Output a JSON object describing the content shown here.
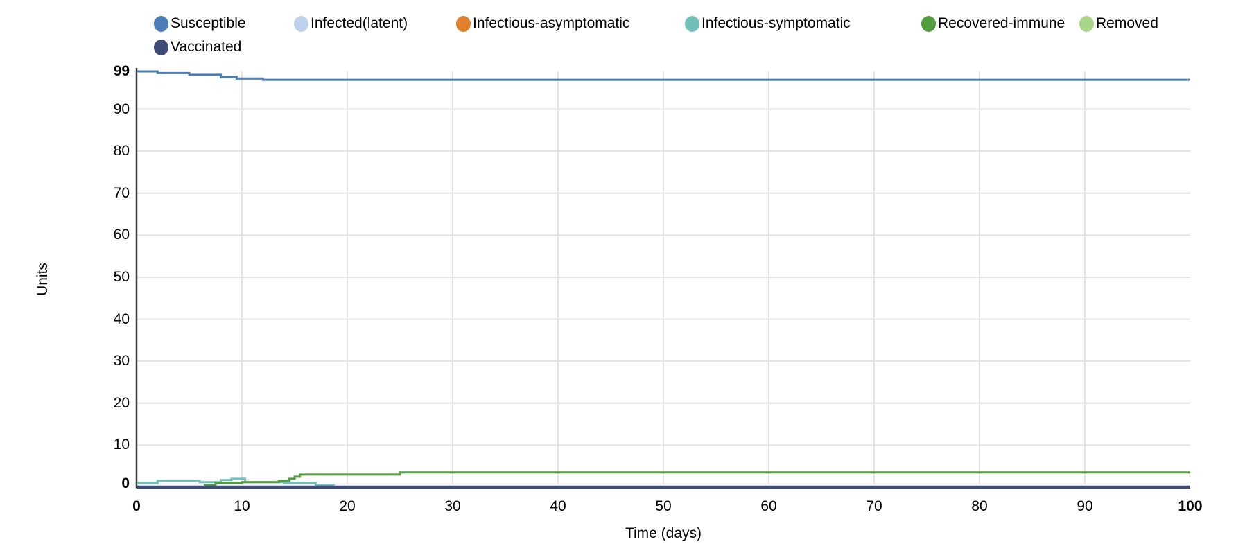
{
  "chart_data": {
    "type": "line",
    "style": "step-after",
    "title": "",
    "xlabel": "Time (days)",
    "ylabel": "Units",
    "xlim": [
      0,
      100
    ],
    "ylim": [
      0,
      99
    ],
    "xticks": [
      0,
      10,
      20,
      30,
      40,
      50,
      60,
      70,
      80,
      90,
      100
    ],
    "yticks": [
      0,
      10,
      20,
      30,
      40,
      50,
      60,
      70,
      80,
      90,
      99
    ],
    "bold_xticks": [
      0,
      100
    ],
    "bold_yticks": [
      0,
      99
    ],
    "grid": true,
    "legend_position": "top",
    "colors": {
      "grid": "#e3e3e3",
      "axis": "#3c3c3c",
      "text": "#000000"
    },
    "series": [
      {
        "name": "Susceptible",
        "color": "#4b7db8",
        "points": [
          [
            0,
            99
          ],
          [
            2,
            98.6
          ],
          [
            5,
            98.2
          ],
          [
            8,
            97.6
          ],
          [
            9.5,
            97.3
          ],
          [
            12,
            97
          ],
          [
            100,
            97
          ]
        ]
      },
      {
        "name": "Infected(latent)",
        "color": "#bed1ed",
        "points": [
          [
            0,
            0
          ],
          [
            100,
            0
          ]
        ]
      },
      {
        "name": "Infectious-asymptomatic",
        "color": "#e1812b",
        "points": [
          [
            0,
            0
          ],
          [
            100,
            0
          ]
        ]
      },
      {
        "name": "Infectious-symptomatic",
        "color": "#70bfb9",
        "points": [
          [
            0,
            1
          ],
          [
            2,
            1.5
          ],
          [
            6,
            1.2
          ],
          [
            8,
            1.7
          ],
          [
            9,
            2
          ],
          [
            10.3,
            1.2
          ],
          [
            14,
            1
          ],
          [
            17,
            0.5
          ],
          [
            18.7,
            0
          ],
          [
            100,
            0
          ]
        ]
      },
      {
        "name": "Recovered-immune",
        "color": "#519e3f",
        "points": [
          [
            0,
            0
          ],
          [
            6.5,
            0.5
          ],
          [
            7.5,
            1
          ],
          [
            10,
            1.2
          ],
          [
            13.5,
            1.5
          ],
          [
            14.5,
            2
          ],
          [
            15,
            2.5
          ],
          [
            15.5,
            3
          ],
          [
            25,
            3.5
          ],
          [
            100,
            3.5
          ]
        ]
      },
      {
        "name": "Removed",
        "color": "#a7d688",
        "points": [
          [
            0,
            0
          ],
          [
            100,
            0
          ]
        ]
      },
      {
        "name": "Vaccinated",
        "color": "#3d4d77",
        "points": [
          [
            0,
            0
          ],
          [
            100,
            0
          ]
        ]
      }
    ]
  }
}
